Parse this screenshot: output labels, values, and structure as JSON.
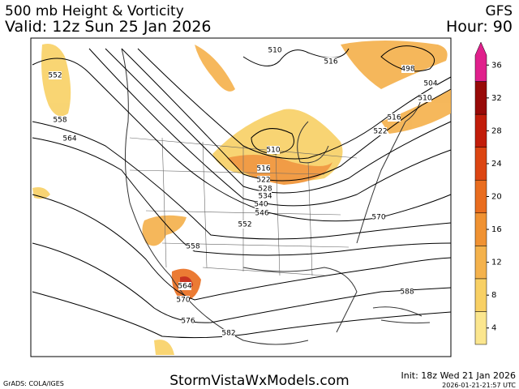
{
  "header": {
    "title": "500 mb Height & Vorticity",
    "model": "GFS",
    "valid": "Valid: 12z Sun 25 Jan 2026",
    "hour": "Hour: 90"
  },
  "footer": {
    "site": "StormVistaWxModels.com",
    "init": "Init: 18z Wed 21 Jan 2026",
    "stamp": "2026-01-21-21:57 UTC",
    "credit": "GrADS: COLA/IGES"
  },
  "colorbar": {
    "ticks": [
      4,
      8,
      12,
      16,
      20,
      24,
      28,
      32,
      36
    ],
    "colors": [
      "#fbe68e",
      "#f8d064",
      "#f4b24c",
      "#f09232",
      "#e96d1f",
      "#dc4512",
      "#c21d0a",
      "#980a08",
      "#e0208c"
    ]
  },
  "contour_labels": [
    "552",
    "558",
    "564",
    "510",
    "516",
    "498",
    "504",
    "510",
    "516",
    "522",
    "510",
    "516",
    "522",
    "528",
    "534",
    "540",
    "546",
    "552",
    "558",
    "564",
    "570",
    "570",
    "576",
    "582",
    "588"
  ]
}
